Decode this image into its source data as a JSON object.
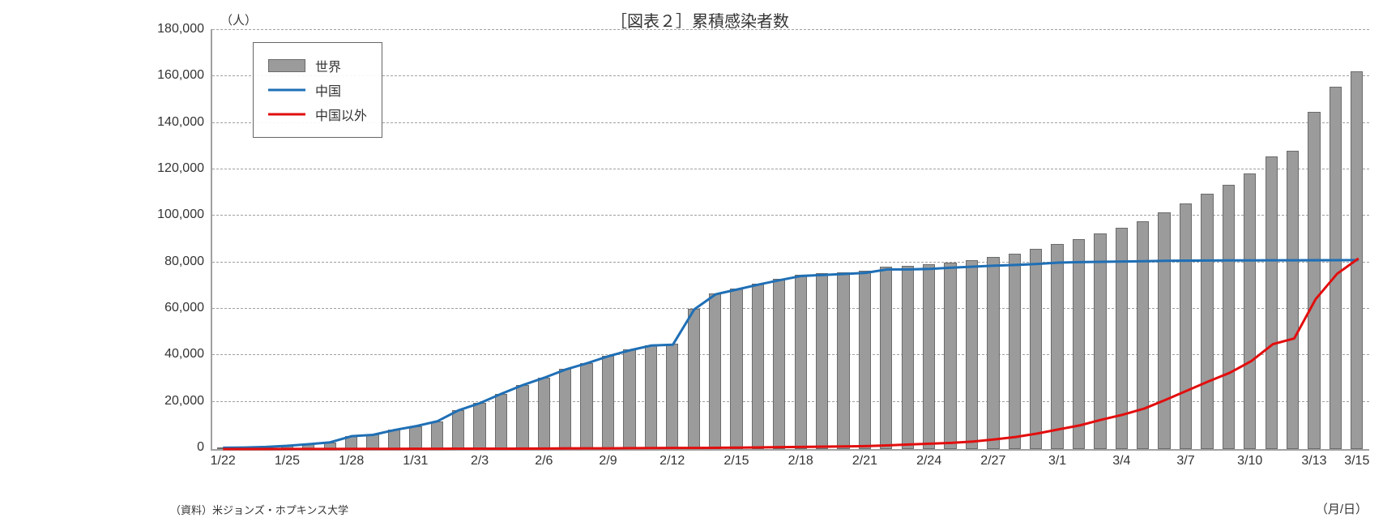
{
  "chart": {
    "type": "bar+line",
    "title": "［図表２］累積感染者数",
    "y_unit": "（人）",
    "x_unit": "（月/日）",
    "source": "（資料）米ジョンズ・ホプキンス大学",
    "background_color": "#ffffff",
    "plot_border_color": "#a0a0a0",
    "grid_color": "#a0a0a0",
    "title_fontsize": 20,
    "tick_fontsize": 16,
    "bar_fill": "#9b9b9b",
    "bar_border": "#6b6b6b",
    "bar_width_ratio": 0.58,
    "line_width": 3,
    "ylim": [
      0,
      180000
    ],
    "ytick_step": 20000,
    "dates": [
      "1/22",
      "1/23",
      "1/24",
      "1/25",
      "1/26",
      "1/27",
      "1/28",
      "1/29",
      "1/30",
      "1/31",
      "2/1",
      "2/2",
      "2/3",
      "2/4",
      "2/5",
      "2/6",
      "2/7",
      "2/8",
      "2/9",
      "2/10",
      "2/11",
      "2/12",
      "2/13",
      "2/14",
      "2/15",
      "2/16",
      "2/17",
      "2/18",
      "2/19",
      "2/20",
      "2/21",
      "2/22",
      "2/23",
      "2/24",
      "2/25",
      "2/26",
      "2/27",
      "2/28",
      "2/29",
      "3/1",
      "3/2",
      "3/3",
      "3/4",
      "3/5",
      "3/6",
      "3/7",
      "3/8",
      "3/9",
      "3/10",
      "3/11",
      "3/12",
      "3/13",
      "3/14",
      "3/15"
    ],
    "x_tick_interval": 3,
    "x_tick_last": "3/15",
    "series": {
      "world": {
        "label": "世界",
        "kind": "bar",
        "values": [
          555,
          654,
          941,
          1434,
          2118,
          2927,
          5578,
          6166,
          8234,
          9927,
          12038,
          16787,
          19881,
          23892,
          27635,
          30794,
          34391,
          37120,
          40150,
          42762,
          44802,
          45221,
          60368,
          66885,
          69030,
          71224,
          73258,
          75136,
          75639,
          76197,
          76819,
          78572,
          78958,
          79561,
          80406,
          81388,
          82746,
          84112,
          86011,
          88369,
          90306,
          92840,
          95120,
          97886,
          101800,
          105847,
          109821,
          113590,
          118620,
          125875,
          128352,
          145205,
          156102,
          162712
        ]
      },
      "china": {
        "label": "中国",
        "kind": "line",
        "color": "#1f6fb5",
        "values": [
          548,
          643,
          920,
          1406,
          2075,
          2877,
          5509,
          6087,
          8141,
          9802,
          11891,
          16630,
          19716,
          23707,
          27440,
          30587,
          34110,
          36814,
          39829,
          42354,
          44386,
          44759,
          59895,
          66358,
          68413,
          70513,
          72434,
          74211,
          74619,
          75077,
          75550,
          77001,
          77022,
          77241,
          77754,
          78166,
          78600,
          78928,
          79356,
          79932,
          80136,
          80261,
          80386,
          80537,
          80690,
          80770,
          80823,
          80860,
          80887,
          80921,
          80932,
          80945,
          80977,
          81003
        ]
      },
      "nonchina": {
        "label": "中国以外",
        "kind": "line",
        "color": "#e20e0e",
        "values": [
          7,
          11,
          21,
          28,
          43,
          50,
          69,
          79,
          93,
          125,
          147,
          157,
          165,
          185,
          195,
          207,
          281,
          306,
          321,
          408,
          416,
          462,
          473,
          527,
          617,
          711,
          824,
          925,
          1020,
          1120,
          1269,
          1571,
          1936,
          2320,
          2652,
          3222,
          4146,
          5184,
          6655,
          8437,
          10170,
          12579,
          14734,
          17349,
          21110,
          25077,
          28998,
          32730,
          37733,
          44954,
          47420,
          64260,
          75125,
          81709
        ]
      }
    },
    "legend": {
      "border_color": "#666666",
      "items": [
        "world",
        "china",
        "nonchina"
      ]
    }
  }
}
